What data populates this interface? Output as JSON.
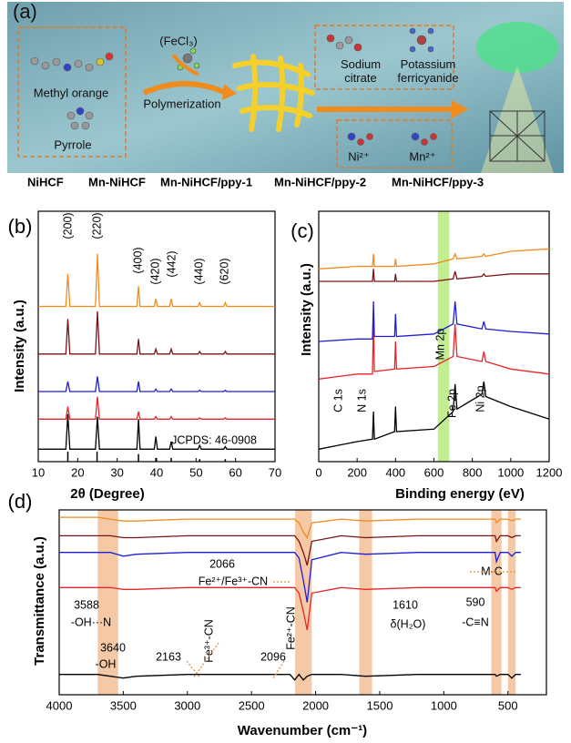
{
  "panel_a": {
    "label": "(a)",
    "methyl_orange": "Methyl orange",
    "pyrrole": "Pyrrole",
    "oxidant": "(FeCl₃)",
    "step": "Polymerization",
    "sodium_citrate": "Sodium citrate",
    "potassium_ferricyanide": "Potassium ferricyanide",
    "ni_ion": "Ni²⁺",
    "mn_ion": "Mn²⁺"
  },
  "chart_data": [
    {
      "type": "line",
      "panel_label": "(b)",
      "xlabel": "2θ (Degree)",
      "ylabel": "Intensity (a.u.)",
      "legend": "top",
      "x": [
        10,
        17,
        17.5,
        18,
        24.5,
        25,
        25.5,
        35,
        35.4,
        35.8,
        39.4,
        39.8,
        40.2,
        43.3,
        43.7,
        44.1,
        50.5,
        50.9,
        51.3,
        57,
        57.4,
        57.8,
        70
      ],
      "series": [
        {
          "name": "NiHCF",
          "color": "#000000",
          "values": [
            5,
            5,
            19,
            5,
            5,
            18,
            5,
            5,
            17,
            5,
            5,
            10,
            5,
            5,
            8,
            5,
            5,
            6.5,
            5,
            5,
            6,
            5,
            5
          ]
        },
        {
          "name": "Mn-NiHCF",
          "color": "#e8262a",
          "values": [
            17,
            17,
            22,
            17,
            17,
            26,
            17,
            17,
            20,
            17,
            17,
            18,
            17,
            17,
            18,
            17,
            17,
            17.5,
            17,
            17,
            17.5,
            17,
            17
          ]
        },
        {
          "name": "Mn-NiHCF/ppy-1",
          "color": "#1f1fd6",
          "values": [
            28,
            28,
            32,
            28,
            28,
            34,
            28,
            28,
            32,
            28,
            28,
            29,
            28,
            28,
            29,
            28,
            28,
            28.5,
            28,
            28,
            28.5,
            28,
            28
          ]
        },
        {
          "name": "Mn-NiHCF/ppy-2",
          "color": "#7a1414",
          "values": [
            43,
            43,
            57,
            43,
            43,
            60,
            43,
            43,
            49,
            43,
            43,
            45,
            43,
            43,
            45,
            43,
            43,
            44,
            43,
            43,
            44,
            43,
            43
          ]
        },
        {
          "name": "Mn-NiHCF/ppy-3",
          "color": "#f08c1e",
          "values": [
            62,
            62,
            75,
            62,
            62,
            83,
            62,
            62,
            70,
            62,
            62,
            65,
            62,
            62,
            65,
            62,
            62,
            63.5,
            62,
            62,
            63.5,
            62,
            62
          ]
        }
      ],
      "xlim": [
        10,
        70
      ],
      "ylim": [
        0,
        100
      ],
      "xticks": [
        10,
        20,
        30,
        40,
        50,
        60,
        70
      ],
      "yticks": [],
      "annotations": [
        "(200)",
        "(220)",
        "(400)",
        "(420)",
        "(442)",
        "(440)",
        "(620)",
        "JCPDS: 46-0908"
      ],
      "reference_peaks": {
        "color": "#000000",
        "x": [
          17.5,
          24.9,
          35.4,
          39.8,
          43.7,
          50.9,
          57.4
        ],
        "values": [
          4,
          4,
          3,
          1.5,
          1.5,
          1,
          1
        ]
      }
    },
    {
      "type": "line",
      "panel_label": "(c)",
      "xlabel": "Binding energy (eV)",
      "ylabel": "Intensity (a.u.)",
      "x": [
        0,
        200,
        280,
        285,
        290,
        395,
        400,
        405,
        600,
        700,
        710,
        720,
        850,
        860,
        870,
        1000,
        1200
      ],
      "series": [
        {
          "color": "#000000",
          "values": [
            5,
            8,
            9,
            20,
            9,
            12,
            22,
            12,
            13,
            20,
            31,
            21,
            27,
            32,
            26,
            22,
            17
          ]
        },
        {
          "color": "#e8262a",
          "values": [
            33,
            35,
            35,
            57,
            36,
            37,
            48,
            37,
            38,
            42,
            55,
            42,
            40,
            44,
            40,
            37,
            35
          ]
        },
        {
          "color": "#1f1fd6",
          "values": [
            48,
            49,
            49,
            64,
            50,
            50,
            59,
            50,
            51,
            55,
            64,
            55,
            53,
            56,
            53,
            52,
            51
          ]
        },
        {
          "color": "#7a1414",
          "values": [
            72,
            72,
            72,
            77,
            72,
            72,
            75,
            72,
            72,
            73,
            76,
            73,
            74,
            75,
            74,
            75,
            75
          ]
        },
        {
          "color": "#f08c1e",
          "values": [
            77,
            78,
            78,
            83,
            78,
            78,
            81,
            78,
            79,
            81,
            83,
            81,
            82,
            83,
            82,
            84,
            85
          ]
        }
      ],
      "xlim": [
        0,
        1200
      ],
      "ylim": [
        0,
        100
      ],
      "xticks": [
        0,
        200,
        400,
        600,
        800,
        1000,
        1200
      ],
      "yticks": [],
      "annotations": [
        "C 1s",
        "N 1s",
        "Mn 2p",
        "Fe 2p",
        "Ni 2p"
      ],
      "highlight_bands": [
        [
          620,
          680
        ]
      ],
      "band_color": "#b9ea7e"
    },
    {
      "type": "line",
      "panel_label": "(d)",
      "xlabel": "Wavenumber (cm⁻¹)",
      "ylabel": "Transmittance (a.u.)",
      "x": [
        4000,
        3700,
        3600,
        3500,
        3400,
        3000,
        2200,
        2163,
        2130,
        2096,
        2066,
        2030,
        1800,
        1610,
        1200,
        700,
        600,
        590,
        560,
        500,
        470,
        440,
        400
      ],
      "series": [
        {
          "color": "#000000",
          "values": [
            11,
            11,
            10,
            9,
            10,
            11,
            11,
            8,
            11,
            8,
            10,
            11,
            11,
            10,
            11,
            11,
            11,
            10,
            11,
            11,
            9,
            11,
            11
          ]
        },
        {
          "color": "#e8262a",
          "values": [
            58,
            58,
            58,
            57,
            57,
            58,
            58,
            58,
            55,
            45,
            35,
            55,
            58,
            57,
            58,
            58,
            58,
            56,
            58,
            58,
            57,
            58,
            58
          ]
        },
        {
          "color": "#1f1fd6",
          "values": [
            77,
            77,
            77,
            75,
            76,
            77,
            77,
            77,
            74,
            62,
            50,
            73,
            77,
            76,
            77,
            77,
            77,
            72,
            77,
            77,
            75,
            77,
            77
          ]
        },
        {
          "color": "#7a1414",
          "values": [
            86,
            86,
            86,
            85,
            85,
            86,
            86,
            86,
            83,
            77,
            70,
            83,
            86,
            85,
            86,
            86,
            86,
            83,
            86,
            86,
            85,
            86,
            86
          ]
        },
        {
          "color": "#f08c1e",
          "values": [
            96,
            96,
            95,
            94,
            94,
            95,
            95,
            95,
            93,
            88,
            85,
            93,
            95,
            94,
            95,
            95,
            95,
            93,
            95,
            95,
            94,
            95,
            95
          ]
        }
      ],
      "xlim": [
        4000,
        200
      ],
      "ylim": [
        0,
        100
      ],
      "xticks": [
        4000,
        3500,
        3000,
        2500,
        2000,
        1500,
        1000,
        500
      ],
      "yticks": [],
      "annotations": [
        "2066",
        "Fe²⁺/Fe³⁺-CN",
        "M-C",
        "3588",
        "-OH···N",
        "1610",
        "δ(H₂O)",
        "590",
        "-C≡N",
        "3640",
        "-OH",
        "2163",
        "Fe³⁺-CN",
        "2096",
        "Fe²⁺-CN"
      ],
      "highlight_bands": [
        [
          3700,
          3540
        ],
        [
          2160,
          2030
        ],
        [
          1660,
          1560
        ],
        [
          630,
          550
        ],
        [
          500,
          440
        ]
      ],
      "band_color": "#f3bf96"
    }
  ]
}
